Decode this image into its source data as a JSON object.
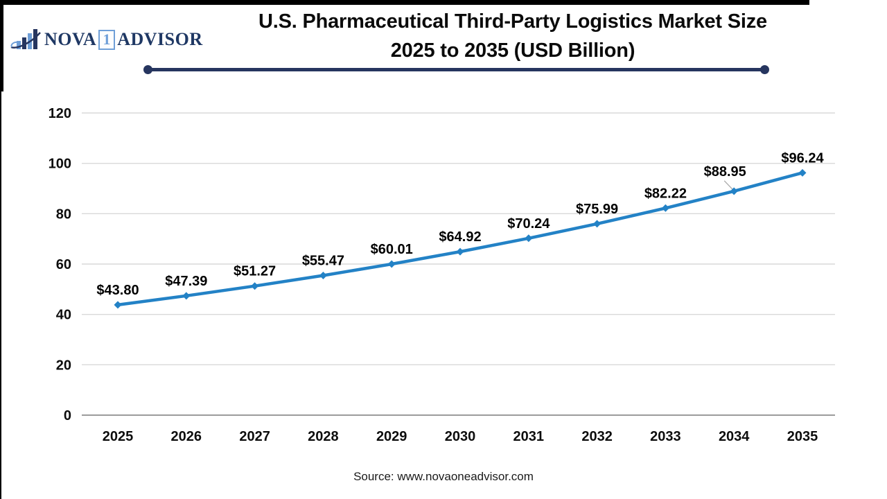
{
  "header": {
    "logo": {
      "brand_left": "NOVA",
      "brand_number": "1",
      "brand_right": "ADVISOR",
      "navy": "#1f3864",
      "light_blue": "#6f9fd8"
    },
    "title_line1": "U.S. Pharmaceutical Third-Party Logistics Market Size",
    "title_line2": "2025 to 2035 (USD Billion)"
  },
  "chart_data": {
    "type": "line",
    "title": "U.S. Pharmaceutical Third-Party Logistics Market Size 2025 to 2035 (USD Billion)",
    "categories": [
      "2025",
      "2026",
      "2027",
      "2028",
      "2029",
      "2030",
      "2031",
      "2032",
      "2033",
      "2034",
      "2035"
    ],
    "values": [
      43.8,
      47.39,
      51.27,
      55.47,
      60.01,
      64.92,
      70.24,
      75.99,
      82.22,
      88.95,
      96.24
    ],
    "data_labels": [
      "$43.80",
      "$47.39",
      "$51.27",
      "$55.47",
      "$60.01",
      "$64.92",
      "$70.24",
      "$75.99",
      "$82.22",
      "$88.95",
      "$96.24"
    ],
    "xlabel": "",
    "ylabel": "",
    "ylim": [
      0,
      120
    ],
    "y_ticks": [
      0,
      20,
      40,
      60,
      80,
      100,
      120
    ],
    "grid": "horizontal",
    "legend": "none",
    "line_color": "#2382c6",
    "marker": "diamond",
    "gridline_color": "#d9d9d9",
    "axis_line_color": "#9b9b9b",
    "leader_line_color": "#a6a6a6",
    "label_overrides": {
      "9": {
        "dx": -13,
        "dy": -7,
        "leader": true
      }
    }
  },
  "footer": {
    "source": "Source: www.novaoneadvisor.com"
  }
}
